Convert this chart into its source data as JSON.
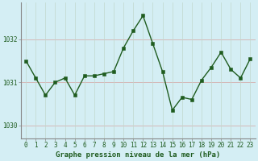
{
  "x": [
    0,
    1,
    2,
    3,
    4,
    5,
    6,
    7,
    8,
    9,
    10,
    11,
    12,
    13,
    14,
    15,
    16,
    17,
    18,
    19,
    20,
    21,
    22,
    23
  ],
  "y": [
    1031.5,
    1031.1,
    1030.7,
    1031.0,
    1031.1,
    1030.7,
    1031.15,
    1031.15,
    1031.2,
    1031.25,
    1031.8,
    1032.2,
    1032.55,
    1031.9,
    1031.25,
    1030.35,
    1030.65,
    1030.6,
    1031.05,
    1031.35,
    1031.7,
    1031.3,
    1031.1,
    1031.55
  ],
  "line_color": "#1f5c1f",
  "marker_color": "#1f5c1f",
  "bg_color": "#d4eef4",
  "grid_color_h": "#d4b8b8",
  "grid_color_v": "#c0d8cc",
  "axis_color": "#888888",
  "xlabel": "Graphe pression niveau de la mer (hPa)",
  "yticks": [
    1030,
    1031,
    1032
  ],
  "ylim": [
    1029.7,
    1032.85
  ],
  "xlim": [
    -0.5,
    23.5
  ],
  "font_color": "#1f5c1f",
  "label_fontsize": 6.5,
  "tick_fontsize": 5.5
}
